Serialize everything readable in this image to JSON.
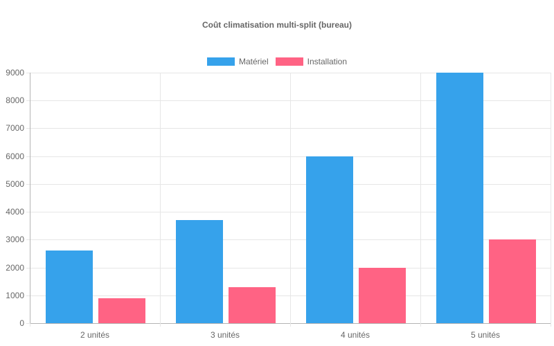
{
  "chart_data": {
    "type": "bar",
    "title": "Coût climatisation multi-split (bureau)",
    "categories": [
      "2 unités",
      "3 unités",
      "4 unités",
      "5 unités"
    ],
    "series": [
      {
        "name": "Matériel",
        "color": "#36A2EB",
        "values": [
          2600,
          3700,
          6000,
          9000
        ]
      },
      {
        "name": "Installation",
        "color": "#FF6384",
        "values": [
          900,
          1300,
          2000,
          3000
        ]
      }
    ],
    "xlabel": "",
    "ylabel": "",
    "ylim": [
      0,
      9000
    ],
    "ytick_step": 1000,
    "yticks": [
      0,
      1000,
      2000,
      3000,
      4000,
      5000,
      6000,
      7000,
      8000,
      9000
    ],
    "grid": true,
    "legend_position": "top"
  },
  "colors": {
    "text": "#666666",
    "grid": "#e6e6e6",
    "axis": "#b3b3b3",
    "background": "#ffffff"
  }
}
